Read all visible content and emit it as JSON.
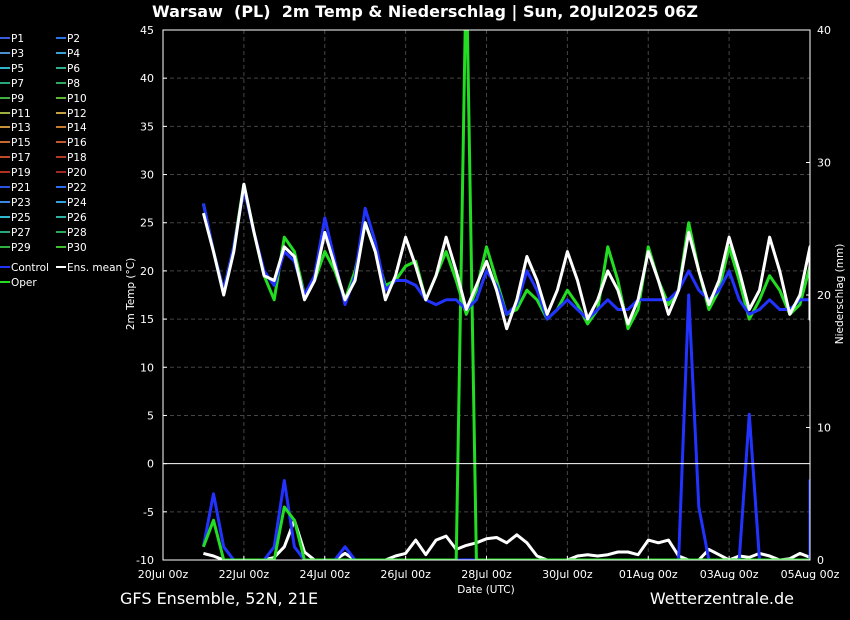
{
  "title": "Warsaw  (PL)  2m Temp & Niederschlag | Sun, 20Jul2025 06Z",
  "footer_left": "GFS Ensemble, 52N, 21E",
  "footer_right": "Wetterzentrale.de",
  "legend": [
    {
      "label": "P1",
      "color": "#3a5bd9"
    },
    {
      "label": "P2",
      "color": "#2a74e8"
    },
    {
      "label": "P3",
      "color": "#4a8fd0"
    },
    {
      "label": "P4",
      "color": "#3aa0d8"
    },
    {
      "label": "P5",
      "color": "#2fb3c8"
    },
    {
      "label": "P6",
      "color": "#30b08a"
    },
    {
      "label": "P7",
      "color": "#25a87a"
    },
    {
      "label": "P8",
      "color": "#2ea85a"
    },
    {
      "label": "P9",
      "color": "#3fb040"
    },
    {
      "label": "P10",
      "color": "#5bb830"
    },
    {
      "label": "P11",
      "color": "#9ab040"
    },
    {
      "label": "P12",
      "color": "#c4a040"
    },
    {
      "label": "P13",
      "color": "#c8903a"
    },
    {
      "label": "P14",
      "color": "#c87a30"
    },
    {
      "label": "P15",
      "color": "#c86a30"
    },
    {
      "label": "P16",
      "color": "#c05a2a"
    },
    {
      "label": "P17",
      "color": "#c04a28"
    },
    {
      "label": "P18",
      "color": "#b03a24"
    },
    {
      "label": "P19",
      "color": "#b03020"
    },
    {
      "label": "P20",
      "color": "#a02820"
    },
    {
      "label": "P21",
      "color": "#2a54e0"
    },
    {
      "label": "P22",
      "color": "#2a6ee8"
    },
    {
      "label": "P23",
      "color": "#3a88e0"
    },
    {
      "label": "P24",
      "color": "#30a0e0"
    },
    {
      "label": "P25",
      "color": "#30b8d0"
    },
    {
      "label": "P26",
      "color": "#30b0a0"
    },
    {
      "label": "P27",
      "color": "#28a878"
    },
    {
      "label": "P28",
      "color": "#28a858"
    },
    {
      "label": "P29",
      "color": "#30b040"
    },
    {
      "label": "P30",
      "color": "#40c030"
    },
    {
      "label": "Control",
      "color": "#2233ff"
    },
    {
      "label": "Ens. mean",
      "color": "#ffffff"
    },
    {
      "label": "Oper",
      "color": "#22dd22"
    }
  ],
  "chart_data": {
    "type": "line",
    "xlabel": "Date (UTC)",
    "ylabel_left": "2m Temp (°C)",
    "ylabel_right": "Niederschlag (mm)",
    "ylim_left": [
      -10,
      45
    ],
    "ylim_right": [
      0,
      40
    ],
    "yticks_left": [
      45,
      40,
      35,
      30,
      25,
      20,
      15,
      10,
      5,
      0,
      -5,
      -10
    ],
    "yticks_right": [
      40,
      30,
      20,
      10,
      0
    ],
    "xticks": [
      "20Jul 00z",
      "22Jul 00z",
      "24Jul 00z",
      "26Jul 00z",
      "28Jul 00z",
      "30Jul 00z",
      "01Aug 00z",
      "03Aug 00z",
      "05Aug 00z"
    ],
    "xticks_days": [
      0,
      2,
      4,
      6,
      8,
      10,
      12,
      14,
      16
    ],
    "x_step_hours": 6,
    "x_start_day": 1.0,
    "grid": true,
    "temp_series": [
      {
        "name": "Ens. mean",
        "color": "#ffffff",
        "values": [
          26,
          22,
          17.5,
          22,
          29,
          24,
          19.5,
          19,
          22.5,
          21.5,
          17,
          19,
          24,
          20.5,
          17,
          19,
          25,
          22,
          17,
          19.5,
          23.5,
          20.5,
          17,
          19.5,
          23.5,
          20,
          16,
          18.5,
          21,
          18,
          14,
          17,
          21.5,
          19,
          15.5,
          18,
          22,
          19,
          15,
          17,
          20,
          18,
          14.5,
          17,
          22,
          19,
          15.5,
          18,
          24,
          20,
          16.5,
          19,
          23.5,
          20,
          16,
          18,
          23.5,
          20,
          15.5,
          17.5,
          22.5,
          19,
          15,
          17
        ]
      },
      {
        "name": "Control",
        "color": "#2233ff",
        "values": [
          27,
          22,
          18,
          22.5,
          28.5,
          24,
          20,
          18.5,
          22,
          21,
          17.5,
          19.5,
          25.5,
          21,
          16.5,
          19.5,
          26.5,
          23,
          18,
          19,
          19,
          18.5,
          17,
          16.5,
          17,
          17,
          16,
          17,
          20,
          18.5,
          15.5,
          16.5,
          20,
          18,
          15,
          16,
          17,
          16,
          15,
          16,
          17,
          16,
          16,
          17,
          17,
          17,
          17,
          18,
          20,
          18,
          17,
          18,
          20,
          17,
          15.5,
          16,
          17,
          16,
          16,
          17,
          17,
          16,
          16,
          16
        ]
      },
      {
        "name": "Oper",
        "color": "#22dd22",
        "values": [
          27,
          22,
          18,
          22.5,
          29,
          24,
          19.5,
          17,
          23.5,
          22,
          17.5,
          19,
          22,
          20,
          17,
          20,
          25,
          22,
          18.5,
          19,
          20.5,
          21,
          17,
          19.5,
          22,
          19,
          15.5,
          18,
          22.5,
          19,
          15.5,
          16,
          18,
          17,
          15,
          16,
          18,
          16.5,
          14.5,
          16,
          22.5,
          19,
          14,
          16,
          22.5,
          19,
          16.5,
          18,
          25,
          20,
          16,
          18,
          22.5,
          19,
          15,
          17,
          19.5,
          18,
          15.5,
          16.5,
          20.5,
          17,
          15.5,
          16.5
        ]
      }
    ],
    "precip_series": [
      {
        "name": "Ens. mean",
        "color": "#ffffff",
        "values": [
          0.5,
          0.3,
          0,
          0,
          0,
          0,
          0,
          0.2,
          1,
          3,
          0.6,
          0,
          0,
          0,
          0.5,
          0,
          0,
          0,
          0,
          0.3,
          0.5,
          1.5,
          0.4,
          1.5,
          1.8,
          0.8,
          1.1,
          1.3,
          1.6,
          1.7,
          1.3,
          1.9,
          1.3,
          0.3,
          0,
          0,
          0,
          0.3,
          0.4,
          0.3,
          0.4,
          0.6,
          0.6,
          0.4,
          1.5,
          1.3,
          1.5,
          0.3,
          0,
          0,
          0.8,
          0.4,
          0,
          0.3,
          0.2,
          0.5,
          0.3,
          0,
          0.1,
          0.5,
          0.2,
          0.6,
          0.3,
          0.3
        ]
      },
      {
        "name": "Control",
        "color": "#2233ff",
        "values": [
          1,
          5,
          1,
          0,
          0,
          0,
          0,
          1,
          6,
          1,
          0,
          0,
          0,
          0,
          1,
          0,
          0,
          0,
          0,
          0,
          0,
          0,
          0,
          0,
          0,
          0,
          0,
          0,
          0,
          0,
          0,
          0,
          0,
          0,
          0,
          0,
          0,
          0,
          0,
          0,
          0,
          0,
          0,
          0,
          0,
          0,
          0,
          0,
          20,
          4,
          0,
          0,
          0,
          0,
          11,
          0,
          0,
          0,
          0,
          0,
          0,
          6,
          2,
          0
        ]
      },
      {
        "name": "Oper",
        "color": "#22dd22",
        "values": [
          1,
          3,
          0,
          0,
          0,
          0,
          0,
          0,
          4,
          3,
          0,
          0,
          0,
          0,
          0,
          0,
          0,
          0,
          0,
          0,
          0,
          0,
          0,
          0,
          0,
          0,
          45,
          0,
          0,
          0,
          0,
          0,
          0,
          0,
          0,
          0,
          0,
          0,
          0,
          0,
          0,
          0,
          0,
          0,
          0,
          0,
          0,
          0,
          0,
          0,
          0,
          0,
          0,
          0,
          0,
          0,
          0,
          0,
          0,
          0,
          0,
          0,
          0,
          0
        ]
      }
    ]
  }
}
